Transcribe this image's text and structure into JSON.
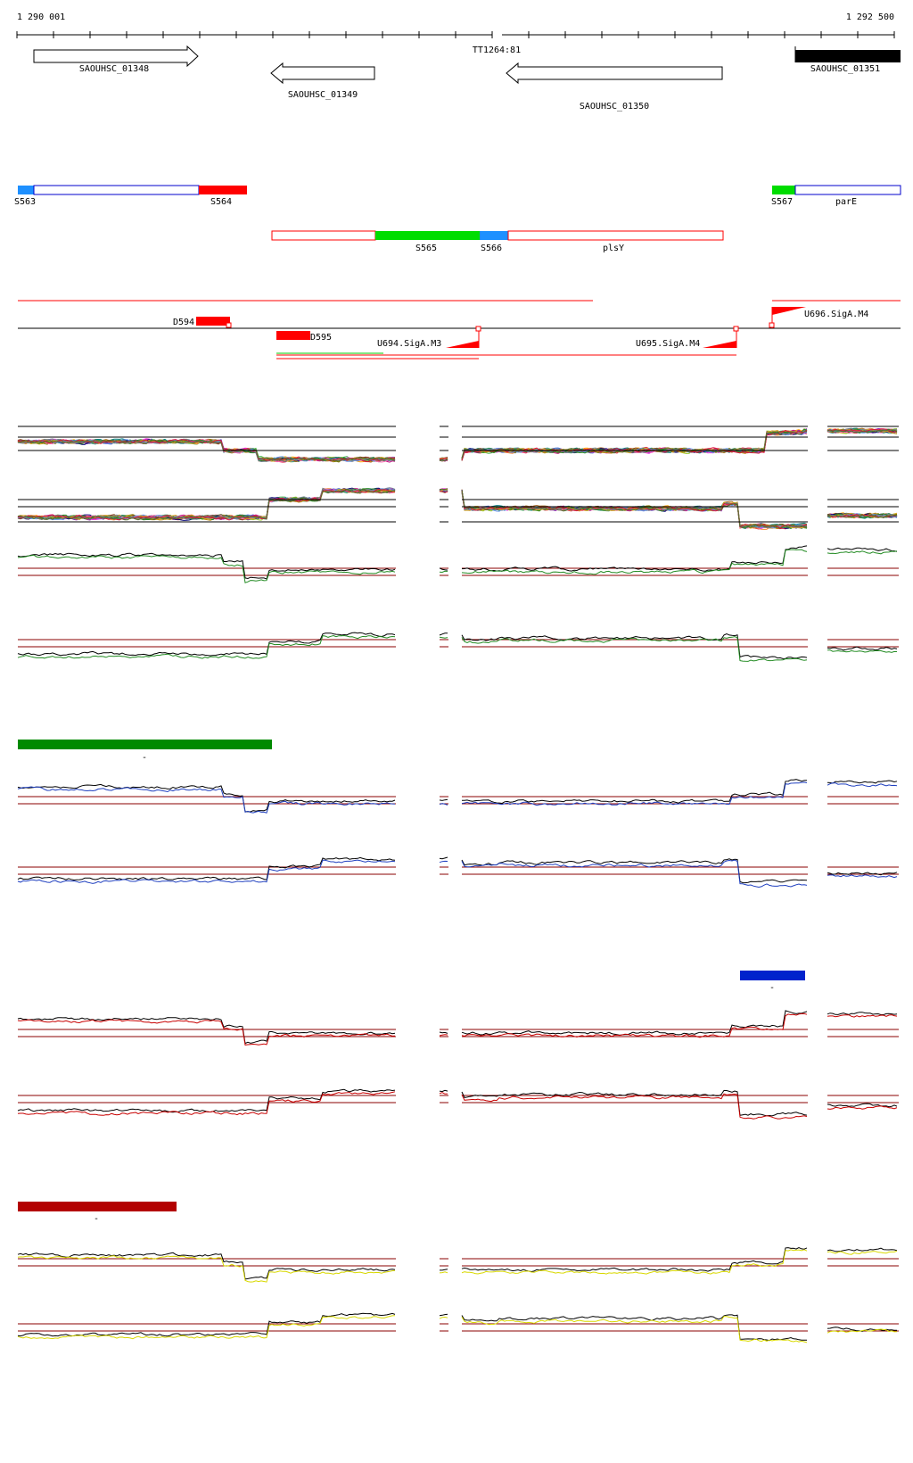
{
  "coordinates": {
    "start": "1 290 001",
    "end": "1 292 500",
    "gap_label": "TT1264:81"
  },
  "genes": [
    {
      "id": "SAOUHSC_01348",
      "strand": "+"
    },
    {
      "id": "SAOUHSC_01349",
      "strand": "-"
    },
    {
      "id": "SAOUHSC_01350",
      "strand": "-"
    },
    {
      "id": "SAOUHSC_01351",
      "strand": "+"
    }
  ],
  "segments": [
    {
      "label": "S563"
    },
    {
      "label": "S564"
    },
    {
      "label": "S565"
    },
    {
      "label": "S566"
    },
    {
      "label": "plsY"
    },
    {
      "label": "S567"
    },
    {
      "label": "parE"
    }
  ],
  "features": [
    {
      "label": "D594"
    },
    {
      "label": "D595"
    },
    {
      "label": "U694.SigA.M3"
    },
    {
      "label": "U695.SigA.M4"
    },
    {
      "label": "U696.SigA.M4"
    }
  ],
  "condition_bars": [
    {
      "color": "#008a00",
      "marker": "-"
    },
    {
      "color": "#0022cc",
      "marker": "-"
    },
    {
      "color": "#b30000",
      "marker": "-"
    }
  ],
  "colors": {
    "red": "#ff0000",
    "green": "#00dd00",
    "blue": "#1e90ff",
    "darkred": "#8b0000",
    "overlay_green": "#228b22",
    "overlay_blue": "#1f3fbf",
    "overlay_red": "#c80000",
    "overlay_yellow": "#d8d800"
  }
}
